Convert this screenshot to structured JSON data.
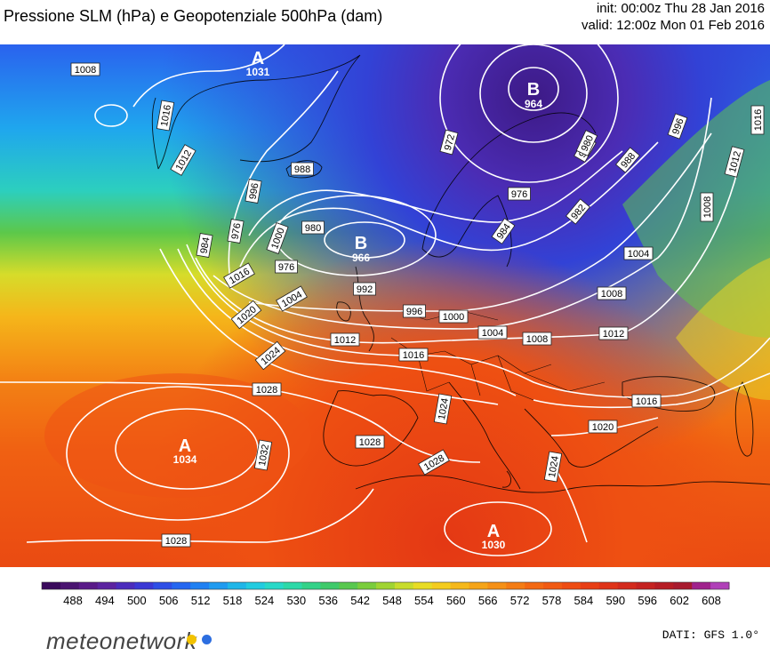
{
  "header": {
    "title": "Pressione SLM (hPa) e Geopotenziale 500hPa (dam)",
    "init": "init: 00:00z Thu 28 Jan 2016",
    "valid": "valid: 12:00z Mon 01 Feb 2016"
  },
  "centers": [
    {
      "letter": "A",
      "value": "1031"
    },
    {
      "letter": "B",
      "value": "964"
    },
    {
      "letter": "B",
      "value": "966"
    },
    {
      "letter": "A",
      "value": "1034"
    },
    {
      "letter": "A",
      "value": "1030"
    }
  ],
  "isobar_labels": [
    "1008",
    "1016",
    "1012",
    "988",
    "996",
    "972",
    "980",
    "976",
    "1000",
    "980",
    "976",
    "992",
    "1004",
    "984",
    "1016",
    "1008",
    "1004",
    "996",
    "1000",
    "1004",
    "1008",
    "1012",
    "1020",
    "1016",
    "1024",
    "1012",
    "1028",
    "1024",
    "1016",
    "1032",
    "1028",
    "1028",
    "1020",
    "1024",
    "1028",
    "996",
    "1016",
    "1012",
    "1008",
    "988",
    "980",
    "984",
    "982",
    "976"
  ],
  "colorbar": {
    "ticks": [
      "488",
      "494",
      "500",
      "506",
      "512",
      "518",
      "524",
      "530",
      "536",
      "542",
      "548",
      "554",
      "560",
      "566",
      "572",
      "578",
      "584",
      "590",
      "596",
      "602",
      "608"
    ],
    "colors": [
      "#3a0a5c",
      "#4a1470",
      "#5a1a88",
      "#5c23a0",
      "#4b2cbc",
      "#3b38d4",
      "#2e4ee6",
      "#2466f0",
      "#1f80f2",
      "#1f9bf0",
      "#1fb6e8",
      "#22cce0",
      "#28d9c8",
      "#2dd9a8",
      "#33d288",
      "#3fca6a",
      "#58c84e",
      "#7acd3c",
      "#a0d432",
      "#c8dc2c",
      "#e8dc24",
      "#f4cc1e",
      "#f5b81a",
      "#f5a418",
      "#f59016",
      "#f47c14",
      "#f36812",
      "#f15a12",
      "#ee4c12",
      "#e83e14",
      "#df3318",
      "#d32a1c",
      "#c52220",
      "#b61c24",
      "#a81a2e",
      "#a0228c",
      "#b040b8"
    ],
    "unit_note": ""
  },
  "brand": {
    "name": "meteonetwork",
    "dot1": "#f2c200",
    "dot2": "#2d6ee0"
  },
  "credit": "DATI: GFS 1.0°"
}
